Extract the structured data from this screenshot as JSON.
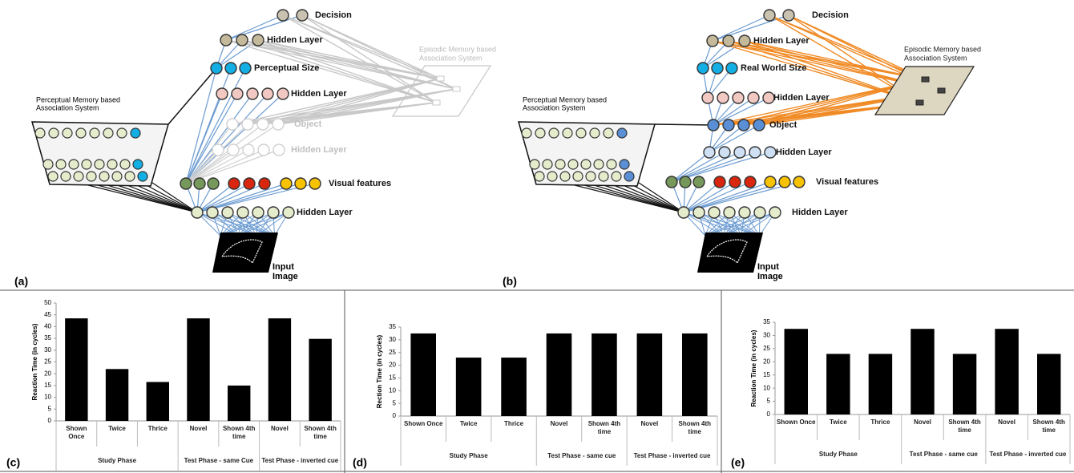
{
  "diagrams": [
    {
      "panel_label": "(a)",
      "layers": [
        "Decision",
        "Hidden Layer",
        "Perceptual Size",
        "Hidden Layer",
        "Object",
        "Hidden Layer",
        "Visual features",
        "Hidden Layer"
      ],
      "input": [
        "Input",
        "Image"
      ],
      "perceptual_system": [
        "Perceptual  Memory based",
        "Association  System"
      ],
      "episodic_system": [
        "Episodic Memory based",
        "Association  System"
      ]
    },
    {
      "panel_label": "(b)",
      "layers": [
        "Decision",
        "Hidden Layer",
        "Real World Size",
        "Hidden Layer",
        "Object",
        "Hidden Layer",
        "Visual features",
        "Hidden Layer"
      ],
      "input": [
        "Input",
        "Image"
      ],
      "perceptual_system": [
        "Perceptual  Memory based",
        "Association  System"
      ],
      "episodic_system": [
        "Episodic Memory based",
        "Association  System"
      ]
    }
  ],
  "chart_data": [
    {
      "type": "bar",
      "panel_label": "(c)",
      "y_label": "Reaction Time (in cycles)",
      "categories": [
        "Shown Once",
        "Twice",
        "Thrice",
        "Novel",
        "Shown 4th time",
        "Novel",
        "Shown 4th time"
      ],
      "groups": [
        "Study Phase",
        "Test Phase - same Cue",
        "Test Phase - inverted cue"
      ],
      "values": [
        43.5,
        22,
        16.5,
        43.5,
        15,
        43.5,
        34.8
      ],
      "color": "#000000",
      "ylim": [
        0,
        50
      ],
      "yticks": [
        0,
        5,
        10,
        15,
        20,
        25,
        30,
        35,
        40,
        45,
        50
      ]
    },
    {
      "type": "bar",
      "panel_label": "(d)",
      "y_label": "Rection Time (in cycles)",
      "categories": [
        "Shown Once",
        "Twice",
        "Thrice",
        "Novel",
        "Shown 4th time",
        "Novel",
        "Shown 4th time"
      ],
      "groups": [
        "Study Phase",
        "Test Phase - same cue",
        "Test Phase - inverted cue"
      ],
      "values": [
        32.5,
        23,
        23,
        32.5,
        32.5,
        32.5,
        32.5
      ],
      "color": "#000000",
      "ylim": [
        0,
        35
      ],
      "yticks": [
        0,
        5,
        10,
        15,
        20,
        25,
        30,
        35
      ]
    },
    {
      "type": "bar",
      "panel_label": "(e)",
      "y_label": "Reaction Time (in cycles)",
      "categories": [
        "Shown Once",
        "Twice",
        "Thrice",
        "Novel",
        "Shown 4th time",
        "Novel",
        "Shown 4th time"
      ],
      "groups": [
        "Study Phase",
        "Test Phase - same cue",
        "Test Phase - inverted cue"
      ],
      "values": [
        32.5,
        23,
        23,
        32.5,
        23,
        32.5,
        23
      ],
      "color": "#000000",
      "ylim": [
        0,
        35
      ],
      "yticks": [
        0,
        5,
        10,
        15,
        20,
        25,
        30,
        35
      ]
    }
  ]
}
